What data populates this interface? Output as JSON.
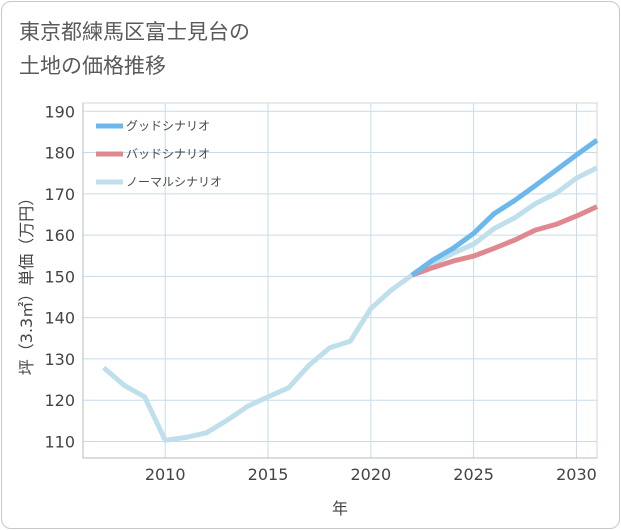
{
  "title": {
    "line1": "東京都練馬区富士見台の",
    "line2": "土地の価格推移"
  },
  "chart_data": {
    "type": "line",
    "title": "東京都練馬区富士見台の土地の価格推移",
    "xlabel": "年",
    "ylabel": "坪（3.3㎡）単価（万円）",
    "xlim": [
      2006,
      2031
    ],
    "ylim": [
      106,
      192
    ],
    "xticks": [
      2010,
      2015,
      2020,
      2025,
      2030
    ],
    "yticks": [
      110,
      120,
      130,
      140,
      150,
      160,
      170,
      180,
      190
    ],
    "grid": true,
    "legend_position": "top-left",
    "series": [
      {
        "name": "グッドシナリオ",
        "color": "#6bb8ec",
        "x": [
          2022,
          2023,
          2024,
          2025,
          2026,
          2027,
          2028,
          2029,
          2030,
          2031
        ],
        "values": [
          150.3,
          153.9,
          156.8,
          160.4,
          165.2,
          168.4,
          172.0,
          175.7,
          179.4,
          183.0
        ]
      },
      {
        "name": "バッドシナリオ",
        "color": "#e08890",
        "x": [
          2022,
          2023,
          2024,
          2025,
          2026,
          2027,
          2028,
          2029,
          2030,
          2031
        ],
        "values": [
          150.3,
          152.1,
          153.7,
          154.9,
          156.8,
          158.8,
          161.2,
          162.6,
          164.6,
          166.9
        ]
      },
      {
        "name": "ノーマルシナリオ",
        "color": "#c0dfec",
        "x": [
          2007,
          2008,
          2009,
          2010,
          2011,
          2012,
          2013,
          2014,
          2015,
          2016,
          2017,
          2018,
          2019,
          2020,
          2021,
          2022,
          2023,
          2024,
          2025,
          2026,
          2027,
          2028,
          2029,
          2030,
          2031
        ],
        "values": [
          127.9,
          123.6,
          120.8,
          110.3,
          111.0,
          112.1,
          115.1,
          118.5,
          120.8,
          123.0,
          128.5,
          132.7,
          134.3,
          142.2,
          146.7,
          150.3,
          153.0,
          155.6,
          157.8,
          161.6,
          164.2,
          167.6,
          170.1,
          173.8,
          176.3
        ]
      }
    ]
  }
}
